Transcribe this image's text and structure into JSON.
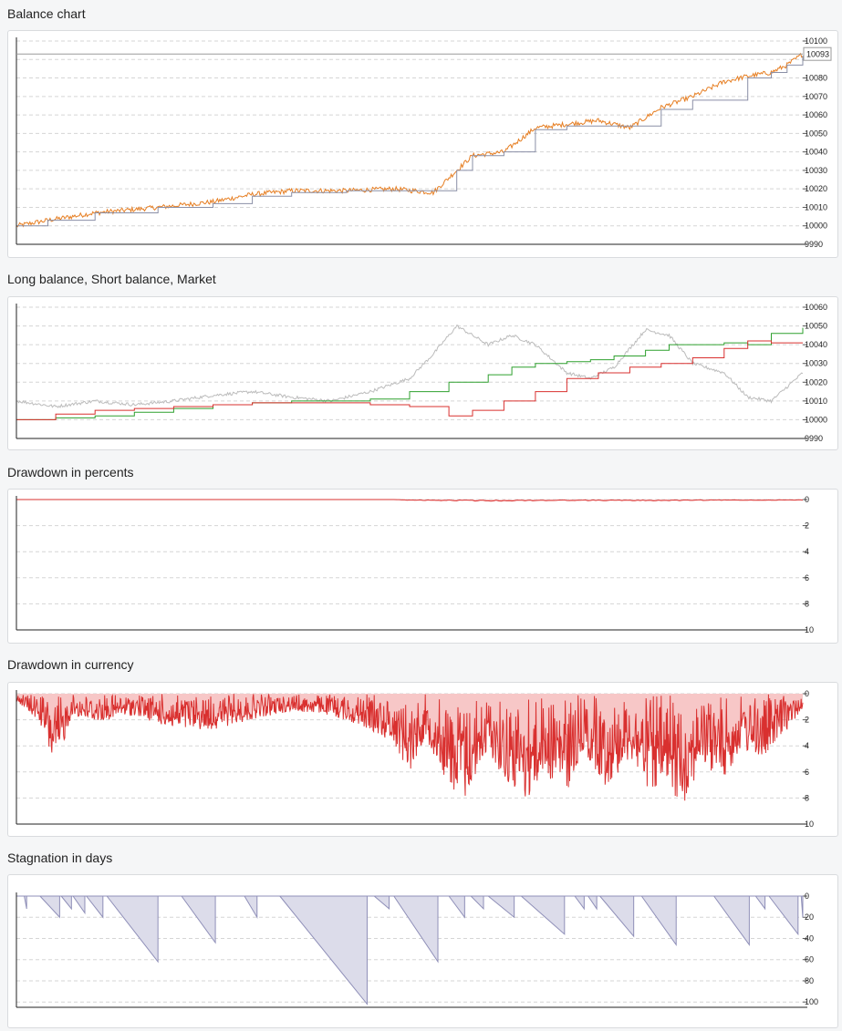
{
  "charts": [
    {
      "id": "balance",
      "title": "Balance chart",
      "chart_data": {
        "type": "line",
        "title": "Balance chart",
        "ylim": [
          9990,
          10100
        ],
        "y_ticks": [
          9990,
          10000,
          10010,
          10020,
          10030,
          10040,
          10050,
          10060,
          10070,
          10080,
          10090,
          10100
        ],
        "y_tick_labels": [
          "9990",
          "10000",
          "10010",
          "10020",
          "10030",
          "10040",
          "10050",
          "10060",
          "10070",
          "10080",
          "",
          "10100"
        ],
        "current_value_label": "10093",
        "current_value": 10093,
        "grid": true,
        "series": [
          {
            "color": "#e67e22",
            "style": "noisy",
            "x": [
              0,
              0.04,
              0.1,
              0.18,
              0.25,
              0.3,
              0.35,
              0.42,
              0.48,
              0.53,
              0.56,
              0.58,
              0.62,
              0.66,
              0.7,
              0.74,
              0.78,
              0.82,
              0.86,
              0.9,
              0.93,
              0.96,
              0.98,
              1
            ],
            "values": [
              10000,
              10003,
              10007,
              10010,
              10013,
              10017,
              10019,
              10019,
              10020,
              10018,
              10030,
              10038,
              10040,
              10053,
              10055,
              10057,
              10053,
              10064,
              10070,
              10078,
              10081,
              10083,
              10087,
              10093
            ]
          },
          {
            "color": "#8a8fa6",
            "style": "step",
            "x": [
              0,
              0.04,
              0.1,
              0.18,
              0.25,
              0.3,
              0.35,
              0.42,
              0.48,
              0.53,
              0.56,
              0.58,
              0.62,
              0.66,
              0.7,
              0.74,
              0.78,
              0.82,
              0.86,
              0.9,
              0.93,
              0.96,
              0.98,
              1
            ],
            "values": [
              10000,
              10003,
              10007,
              10010,
              10012,
              10016,
              10018,
              10019,
              10019,
              10019,
              10030,
              10038,
              10040,
              10052,
              10054,
              10054,
              10054,
              10063,
              10068,
              10068,
              10080,
              10083,
              10087,
              10092
            ]
          }
        ]
      }
    },
    {
      "id": "longshort",
      "title": "Long balance, Short balance, Market",
      "chart_data": {
        "type": "line",
        "title": "Long balance, Short balance, Market",
        "ylim": [
          9990,
          10060
        ],
        "y_ticks": [
          9990,
          10000,
          10010,
          10020,
          10030,
          10040,
          10050,
          10060
        ],
        "y_tick_labels": [
          "9990",
          "10000",
          "10010",
          "10020",
          "10030",
          "10040",
          "10050",
          "10060"
        ],
        "grid": true,
        "series": [
          {
            "color": "#bcbcbc",
            "style": "noisy",
            "x": [
              0,
              0.05,
              0.1,
              0.15,
              0.2,
              0.25,
              0.3,
              0.35,
              0.4,
              0.45,
              0.5,
              0.53,
              0.56,
              0.6,
              0.63,
              0.66,
              0.7,
              0.73,
              0.76,
              0.8,
              0.83,
              0.86,
              0.9,
              0.93,
              0.96,
              1
            ],
            "values": [
              10010,
              10007,
              10010,
              10008,
              10010,
              10013,
              10015,
              10012,
              10010,
              10015,
              10022,
              10035,
              10050,
              10040,
              10045,
              10040,
              10025,
              10022,
              10028,
              10048,
              10045,
              10030,
              10025,
              10012,
              10010,
              10025
            ]
          },
          {
            "color": "#2ea02e",
            "style": "step",
            "x": [
              0,
              0.05,
              0.1,
              0.15,
              0.2,
              0.25,
              0.3,
              0.35,
              0.4,
              0.45,
              0.5,
              0.55,
              0.6,
              0.63,
              0.66,
              0.7,
              0.73,
              0.76,
              0.8,
              0.83,
              0.86,
              0.9,
              0.93,
              0.96,
              1
            ],
            "values": [
              10000,
              10001,
              10002,
              10004,
              10006,
              10008,
              10009,
              10010,
              10010,
              10011,
              10015,
              10020,
              10024,
              10028,
              10030,
              10031,
              10032,
              10034,
              10037,
              10040,
              10040,
              10041,
              10040,
              10046,
              10049
            ]
          },
          {
            "color": "#d9302f",
            "style": "step",
            "x": [
              0,
              0.05,
              0.1,
              0.15,
              0.2,
              0.25,
              0.3,
              0.35,
              0.4,
              0.45,
              0.5,
              0.55,
              0.58,
              0.62,
              0.66,
              0.7,
              0.74,
              0.78,
              0.82,
              0.86,
              0.9,
              0.93,
              0.96,
              1
            ],
            "values": [
              10000,
              10003,
              10005,
              10006,
              10007,
              10008,
              10009,
              10009,
              10009,
              10008,
              10007,
              10002,
              10005,
              10010,
              10015,
              10022,
              10025,
              10028,
              10030,
              10033,
              10038,
              10042,
              10041,
              10041
            ]
          }
        ]
      }
    },
    {
      "id": "ddpct",
      "title": "Drawdown in percents",
      "chart_data": {
        "type": "area",
        "title": "Drawdown in percents",
        "ylim": [
          0,
          10
        ],
        "y_inverted": true,
        "y_ticks": [
          0,
          2,
          4,
          6,
          8,
          10
        ],
        "y_tick_labels": [
          "0",
          "2",
          "4",
          "6",
          "8",
          "10"
        ],
        "grid": true,
        "series": [
          {
            "color": "#d9302f",
            "fill": "#f7c7c7",
            "style": "drawdown",
            "x": [
              0,
              0.48,
              0.5,
              0.6,
              0.7,
              0.8,
              0.9,
              1
            ],
            "values": [
              0,
              0,
              0.05,
              0.1,
              0.06,
              0.08,
              0.05,
              0.04
            ]
          }
        ]
      }
    },
    {
      "id": "ddcur",
      "title": "Drawdown in currency",
      "chart_data": {
        "type": "area",
        "title": "Drawdown in currency",
        "ylim": [
          0,
          10
        ],
        "y_inverted": true,
        "y_ticks": [
          0,
          2,
          4,
          6,
          8,
          10
        ],
        "y_tick_labels": [
          "0",
          "2",
          "4",
          "6",
          "8",
          "10"
        ],
        "grid": true,
        "series": [
          {
            "color": "#d9302f",
            "fill": "#f7c7c7",
            "style": "drawdown",
            "x": [
              0,
              0.03,
              0.05,
              0.07,
              0.1,
              0.15,
              0.2,
              0.25,
              0.3,
              0.35,
              0.4,
              0.45,
              0.48,
              0.5,
              0.52,
              0.55,
              0.57,
              0.6,
              0.62,
              0.65,
              0.67,
              0.7,
              0.72,
              0.75,
              0.78,
              0.8,
              0.85,
              0.87,
              0.9,
              0.92,
              0.95,
              0.98,
              1
            ],
            "values": [
              0.5,
              2,
              5.5,
              1.5,
              2,
              1.5,
              2.5,
              2.5,
              1.8,
              1.2,
              1.5,
              2.5,
              3.5,
              5.5,
              3,
              6.5,
              7.5,
              4,
              6,
              7.5,
              5.5,
              7,
              4,
              6.5,
              4.5,
              6.5,
              7.5,
              5,
              6,
              4,
              4.5,
              2.5,
              1
            ]
          }
        ]
      }
    },
    {
      "id": "stag",
      "title": "Stagnation in days",
      "chart_data": {
        "type": "area",
        "title": "Stagnation in days",
        "ylim": [
          0,
          105
        ],
        "y_inverted": true,
        "y_ticks": [
          0,
          20,
          40,
          60,
          80,
          100
        ],
        "y_tick_labels": [
          "0",
          "20",
          "40",
          "60",
          "80",
          "100"
        ],
        "grid": true,
        "series": [
          {
            "color": "#8f8fb8",
            "fill": "#dcdcea",
            "style": "sawtooth",
            "teeth": [
              [
                0.01,
                0.013,
                12
              ],
              [
                0.03,
                0.055,
                20
              ],
              [
                0.057,
                0.07,
                12
              ],
              [
                0.072,
                0.087,
                16
              ],
              [
                0.089,
                0.11,
                20
              ],
              [
                0.115,
                0.18,
                62
              ],
              [
                0.21,
                0.253,
                44
              ],
              [
                0.29,
                0.306,
                20
              ],
              [
                0.335,
                0.446,
                102
              ],
              [
                0.455,
                0.474,
                12
              ],
              [
                0.48,
                0.536,
                62
              ],
              [
                0.55,
                0.57,
                20
              ],
              [
                0.578,
                0.594,
                12
              ],
              [
                0.6,
                0.633,
                20
              ],
              [
                0.642,
                0.697,
                36
              ],
              [
                0.71,
                0.722,
                12
              ],
              [
                0.727,
                0.738,
                12
              ],
              [
                0.742,
                0.785,
                38
              ],
              [
                0.795,
                0.839,
                46
              ],
              [
                0.887,
                0.932,
                46
              ],
              [
                0.94,
                0.952,
                12
              ],
              [
                0.957,
                0.994,
                36
              ],
              [
                0.998,
                1,
                20
              ]
            ]
          }
        ]
      }
    }
  ]
}
